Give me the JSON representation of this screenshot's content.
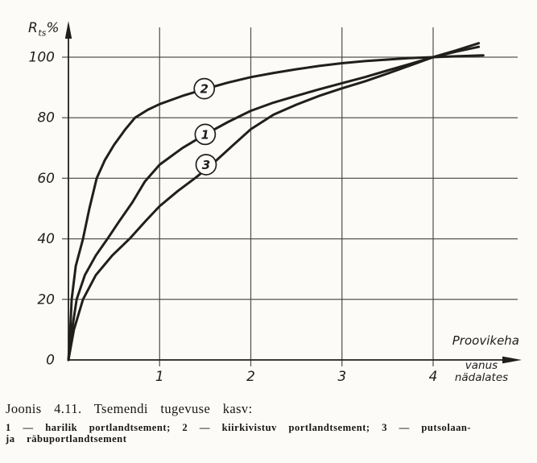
{
  "style": {
    "ink": "#201f1c",
    "grid_color": "#45423d",
    "paper": "#fcfbf8",
    "circle_fill": "#fdfdfb"
  },
  "figure": {
    "ylabel_main": "R",
    "ylabel_sub": "ts",
    "ylabel_unit": "%",
    "xlabel_word1": "Proovikeha",
    "xlabel_word2": "vanus",
    "xlabel_word3": "nädalates"
  },
  "caption": {
    "title": "Joonis 4.11. Tsemendi tugevuse kasv:",
    "legend_line1": "1 — harilik portlandtsement; 2 — kiirkivistuv portlandtsement; 3 — putsolaan-",
    "legend_line2": "ja räbuportlandtsement"
  },
  "chart_data": {
    "type": "line",
    "title": "Tsemendi tugevuse kasv",
    "xlabel": "Proovikeha vanus nädalates",
    "ylabel": "Rts%",
    "xlim": [
      0,
      4.97
    ],
    "ylim": [
      0,
      110
    ],
    "x_ticks": [
      1,
      2,
      3,
      4
    ],
    "y_ticks": [
      0,
      20,
      40,
      60,
      80,
      100
    ],
    "grid": true,
    "legend_position": "labels in circles on curves",
    "series": [
      {
        "label": "2",
        "name": "2 — kiirkivistuv portlandtsement",
        "label_pos": {
          "x": 1.49,
          "y": 89.6
        },
        "points": [
          [
            0,
            0
          ],
          [
            0.02,
            10
          ],
          [
            0.035,
            20
          ],
          [
            0.08,
            31
          ],
          [
            0.16,
            40
          ],
          [
            0.23,
            50
          ],
          [
            0.31,
            60
          ],
          [
            0.4,
            66
          ],
          [
            0.5,
            71
          ],
          [
            0.62,
            76
          ],
          [
            0.73,
            80
          ],
          [
            0.87,
            82.6
          ],
          [
            1,
            84.5
          ],
          [
            1.25,
            87.2
          ],
          [
            1.5,
            89.5
          ],
          [
            1.75,
            91.6
          ],
          [
            2,
            93.4
          ],
          [
            2.25,
            94.8
          ],
          [
            2.5,
            96
          ],
          [
            2.75,
            97.1
          ],
          [
            3,
            98
          ],
          [
            3.25,
            98.7
          ],
          [
            3.5,
            99.2
          ],
          [
            3.75,
            99.7
          ],
          [
            4,
            100
          ],
          [
            4.25,
            100.3
          ],
          [
            4.55,
            100.6
          ]
        ]
      },
      {
        "label": "1",
        "name": "1 — harilik portlandtsement",
        "label_pos": {
          "x": 1.5,
          "y": 74.5
        },
        "points": [
          [
            0,
            0
          ],
          [
            0.04,
            10
          ],
          [
            0.09,
            20
          ],
          [
            0.18,
            28
          ],
          [
            0.3,
            34.5
          ],
          [
            0.44,
            40.5
          ],
          [
            0.55,
            45.5
          ],
          [
            0.7,
            52
          ],
          [
            0.84,
            59
          ],
          [
            1,
            64.5
          ],
          [
            1.25,
            70
          ],
          [
            1.5,
            74.5
          ],
          [
            1.75,
            78.6
          ],
          [
            2,
            82.3
          ],
          [
            2.25,
            85
          ],
          [
            2.5,
            87.2
          ],
          [
            2.75,
            89.4
          ],
          [
            3,
            91.4
          ],
          [
            3.25,
            93.4
          ],
          [
            3.5,
            95.6
          ],
          [
            3.75,
            97.8
          ],
          [
            4,
            100
          ],
          [
            4.25,
            101.8
          ],
          [
            4.5,
            103.4
          ]
        ]
      },
      {
        "label": "3",
        "name": "3 — putsolaan- ja räbuportlandtsement",
        "label_pos": {
          "x": 1.51,
          "y": 64.5
        },
        "points": [
          [
            0,
            0
          ],
          [
            0.06,
            10
          ],
          [
            0.16,
            20
          ],
          [
            0.3,
            28
          ],
          [
            0.48,
            34.5
          ],
          [
            0.67,
            40
          ],
          [
            0.85,
            46
          ],
          [
            1,
            50.8
          ],
          [
            1.2,
            55.8
          ],
          [
            1.4,
            60.3
          ],
          [
            1.6,
            65.3
          ],
          [
            1.8,
            70.8
          ],
          [
            2,
            76.2
          ],
          [
            2.25,
            81
          ],
          [
            2.5,
            84.3
          ],
          [
            2.75,
            87.2
          ],
          [
            3,
            89.7
          ],
          [
            3.25,
            92
          ],
          [
            3.5,
            94.6
          ],
          [
            3.75,
            97.3
          ],
          [
            4,
            100
          ],
          [
            4.25,
            102.2
          ],
          [
            4.5,
            104.6
          ]
        ]
      }
    ]
  }
}
